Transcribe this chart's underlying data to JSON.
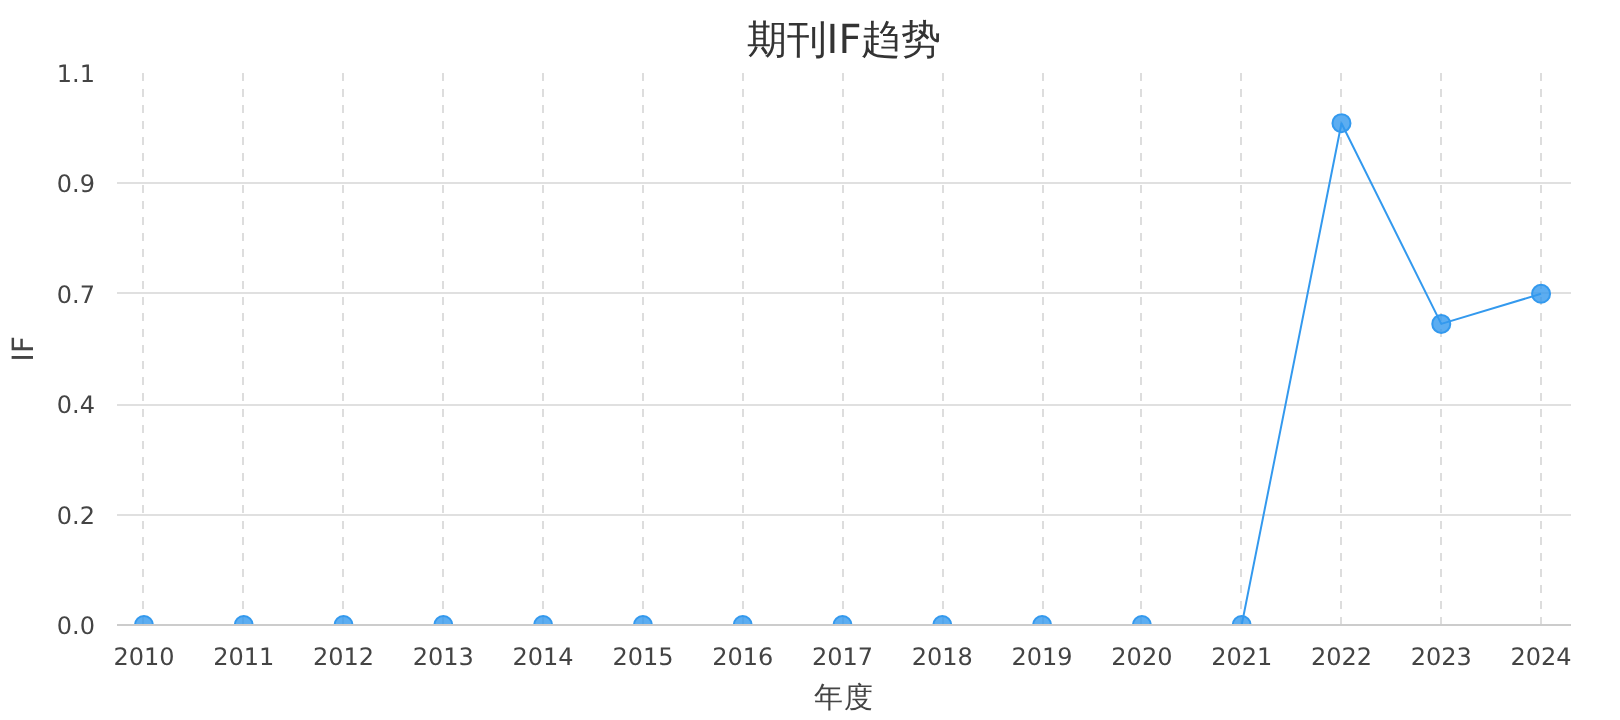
{
  "chart_data": {
    "type": "line",
    "title": "期刊IF趋势",
    "xlabel": "年度",
    "ylabel": "IF",
    "categories": [
      "2010",
      "2011",
      "2012",
      "2013",
      "2014",
      "2015",
      "2016",
      "2017",
      "2018",
      "2019",
      "2020",
      "2021",
      "2022",
      "2023",
      "2024"
    ],
    "series": [
      {
        "color": "#3399ee",
        "values": [
          0,
          0,
          0,
          0,
          0,
          0,
          0,
          0,
          0,
          0,
          0,
          0,
          1.0,
          0.6,
          0.66
        ]
      }
    ],
    "ylim": [
      0,
      1.1
    ],
    "yticks": [
      {
        "value": 0,
        "label": "0.0"
      },
      {
        "value": 0.22,
        "label": "0.2"
      },
      {
        "value": 0.44,
        "label": "0.4"
      },
      {
        "value": 0.66,
        "label": "0.7"
      },
      {
        "value": 0.88,
        "label": "0.9"
      },
      {
        "value": 1.1,
        "label": "1.1"
      }
    ],
    "grid": true,
    "marker": "circle",
    "line_style": "solid"
  }
}
